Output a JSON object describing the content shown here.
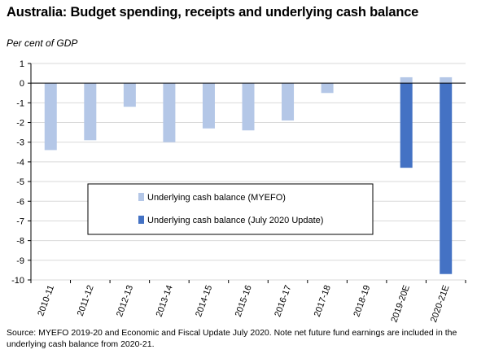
{
  "title": "Australia: Budget spending, receipts and underlying cash balance",
  "y_unit": "Per cent of GDP",
  "source": "Source: MYEFO 2019-20 and Economic and Fiscal Update July 2020.  Note net future fund earnings are included in the underlying cash balance from 2020-21.",
  "colors": {
    "myefo": "#b4c7e7",
    "july": "#4472c4"
  },
  "chart_data": {
    "type": "bar",
    "title": "Australia: Budget spending, receipts and underlying cash balance",
    "ylabel": "Per cent of GDP",
    "xlabel": "",
    "ylim": [
      -10,
      1
    ],
    "yticks": [
      1,
      0,
      -1,
      -2,
      -3,
      -4,
      -5,
      -6,
      -7,
      -8,
      -9,
      -10
    ],
    "grid": true,
    "legend_position": "middle-left",
    "categories": [
      "2010-11",
      "2011-12",
      "2012-13",
      "2013-14",
      "2014-15",
      "2015-16",
      "2016-17",
      "2017-18",
      "2018-19",
      "2019-20E",
      "2020-21E"
    ],
    "series": [
      {
        "name": "Underlying cash balance (MYEFO)",
        "color": "#b4c7e7",
        "values": [
          -3.4,
          -2.9,
          -1.2,
          -3.0,
          -2.3,
          -2.4,
          -1.9,
          -0.5,
          0.0,
          0.3,
          0.3
        ]
      },
      {
        "name": "Underlying cash balance (July 2020 Update)",
        "color": "#4472c4",
        "values": [
          null,
          null,
          null,
          null,
          null,
          null,
          null,
          null,
          null,
          -4.3,
          -9.7
        ]
      }
    ]
  }
}
